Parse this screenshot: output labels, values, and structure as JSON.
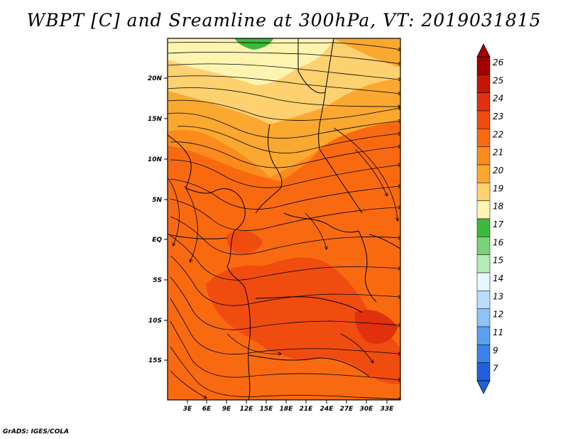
{
  "title": "WBPT [C] and Sreamline at 300hPa, VT: 2019031815",
  "credit": "GrADS: IGES/COLA",
  "map": {
    "lat_ticks": [
      "20N",
      "15N",
      "10N",
      "5N",
      "EQ",
      "5S",
      "10S",
      "15S"
    ],
    "lon_ticks": [
      "3E",
      "6E",
      "9E",
      "12E",
      "15E",
      "18E",
      "21E",
      "24E",
      "27E",
      "30E",
      "33E"
    ]
  },
  "colorbar": {
    "levels": [
      "26",
      "25",
      "24",
      "23",
      "22",
      "21",
      "20",
      "19",
      "18",
      "17",
      "16",
      "15",
      "14",
      "13",
      "12",
      "11",
      "9",
      "7"
    ],
    "colors": [
      "#a50000",
      "#c41600",
      "#e0300c",
      "#f04c10",
      "#f96a10",
      "#fb8c1c",
      "#fba830",
      "#fdd070",
      "#fef4b0",
      "#3cba3c",
      "#78d478",
      "#b4ecb4",
      "#e6f8ff",
      "#b8dcfc",
      "#8cc4f8",
      "#5aa0f0",
      "#3c82ea",
      "#2060dc"
    ]
  },
  "colors": {
    "main_field": "#f96a10",
    "warm_core": "#f04c10",
    "cool_band": "#fba830",
    "cooler_band": "#fdd070",
    "coolest_band": "#fef4b0",
    "green_patch": "#3cba3c"
  }
}
